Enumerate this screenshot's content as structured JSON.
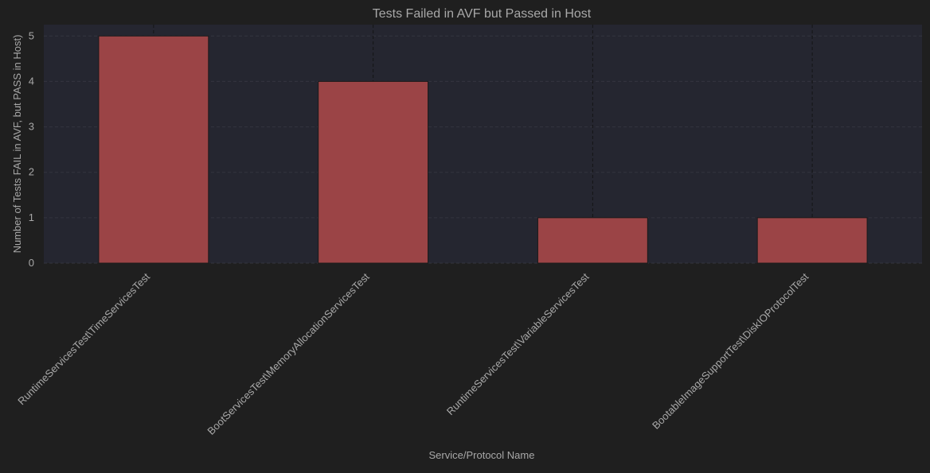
{
  "colors": {
    "figure_background": "#1f1f1f",
    "plot_background": "#252630",
    "bar_fill": "#9b4446",
    "bar_edge": "#1a1a1a",
    "text": "#a8a8a8",
    "grid": "#34353f"
  },
  "chart_data": {
    "type": "bar",
    "title": "Tests Failed in AVF but Passed in Host",
    "xlabel": "Service/Protocol Name",
    "ylabel": "Number of Tests FAIL in AVF, but PASS in Host)",
    "categories": [
      "RuntimeServicesTest\\TimeServicesTest",
      "BootServicesTest\\MemoryAllocationServicesTest",
      "RuntimeServicesTest\\VariableServicesTest",
      "BootableImageSupportTest\\DiskIOProtocolTest"
    ],
    "values": [
      5,
      4,
      1,
      1
    ],
    "ylim": [
      0,
      5.25
    ],
    "yticks": [
      0,
      1,
      2,
      3,
      4,
      5
    ],
    "grid": true,
    "legend": "none"
  }
}
